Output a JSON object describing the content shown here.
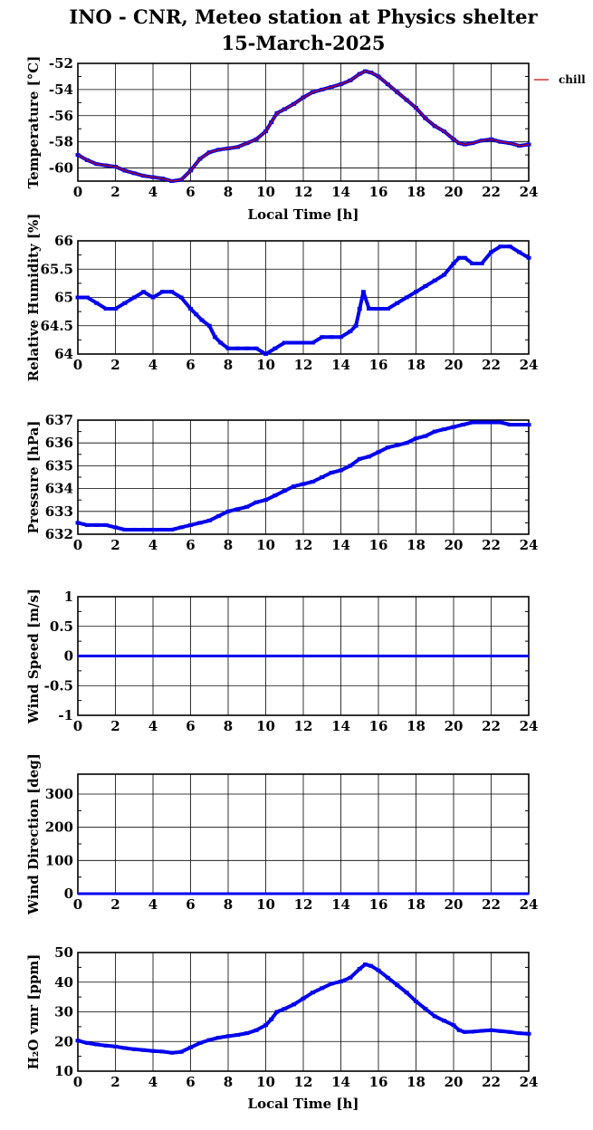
{
  "title_line1": "INO - CNR, Meteo station at Physics shelter",
  "title_line2": "15-March-2025",
  "colors": {
    "data": "#0000ee",
    "chill": "#cc0000",
    "axis": "#000000"
  },
  "chart_data": [
    {
      "type": "scatter",
      "ylabel": "Temperature [°C]",
      "xlabel": "Local Time [h]",
      "xlim": [
        0,
        24
      ],
      "ylim": [
        -61,
        -52
      ],
      "xticks": [
        0,
        2,
        4,
        6,
        8,
        10,
        12,
        14,
        16,
        18,
        20,
        22,
        24
      ],
      "yticks": [
        -60,
        -58,
        -56,
        -54,
        -52
      ],
      "legend": {
        "label": "chill",
        "placement": "outside-right"
      },
      "series": [
        {
          "name": "",
          "color": "#0000ee",
          "x": [
            0,
            0.5,
            1,
            1.5,
            2,
            2.5,
            3,
            3.5,
            4,
            4.5,
            5,
            5.5,
            6,
            6.5,
            7,
            7.5,
            8,
            8.5,
            9,
            9.5,
            10,
            10.3,
            10.6,
            11,
            11.5,
            12,
            12.5,
            13,
            13.5,
            14,
            14.5,
            15,
            15.3,
            15.6,
            16,
            16.5,
            17,
            17.5,
            18,
            18.5,
            19,
            19.5,
            20,
            20.3,
            20.6,
            21,
            21.5,
            22,
            22.5,
            23,
            23.5,
            24
          ],
          "y": [
            -59.0,
            -59.4,
            -59.7,
            -59.8,
            -59.9,
            -60.2,
            -60.4,
            -60.6,
            -60.7,
            -60.8,
            -61.0,
            -60.9,
            -60.2,
            -59.3,
            -58.8,
            -58.6,
            -58.5,
            -58.4,
            -58.1,
            -57.8,
            -57.2,
            -56.5,
            -55.8,
            -55.5,
            -55.1,
            -54.6,
            -54.2,
            -54.0,
            -53.8,
            -53.6,
            -53.3,
            -52.8,
            -52.6,
            -52.7,
            -53.0,
            -53.6,
            -54.2,
            -54.8,
            -55.4,
            -56.2,
            -56.8,
            -57.2,
            -57.8,
            -58.1,
            -58.2,
            -58.1,
            -57.9,
            -57.8,
            -58.0,
            -58.1,
            -58.3,
            -58.2
          ]
        },
        {
          "name": "chill",
          "color": "#cc0000",
          "x": [
            0,
            0.5,
            1,
            1.5,
            2,
            2.5,
            3,
            3.5,
            4,
            4.5,
            5,
            5.5,
            6,
            6.5,
            7,
            7.5,
            8,
            8.5,
            9,
            9.5,
            10,
            10.3,
            10.6,
            11,
            11.5,
            12,
            12.5,
            13,
            13.5,
            14,
            14.5,
            15,
            15.3,
            15.6,
            16,
            16.5,
            17,
            17.5,
            18,
            18.5,
            19,
            19.5,
            20,
            20.3,
            20.6,
            21,
            21.5,
            22,
            22.5,
            23,
            23.5,
            24
          ],
          "y": [
            -59.0,
            -59.4,
            -59.7,
            -59.8,
            -59.9,
            -60.2,
            -60.4,
            -60.6,
            -60.7,
            -60.8,
            -61.0,
            -60.9,
            -60.2,
            -59.3,
            -58.8,
            -58.6,
            -58.5,
            -58.4,
            -58.1,
            -57.8,
            -57.2,
            -56.5,
            -55.8,
            -55.5,
            -55.1,
            -54.6,
            -54.2,
            -54.0,
            -53.8,
            -53.6,
            -53.3,
            -52.8,
            -52.6,
            -52.7,
            -53.0,
            -53.6,
            -54.2,
            -54.8,
            -55.4,
            -56.2,
            -56.8,
            -57.2,
            -57.8,
            -58.1,
            -58.2,
            -58.1,
            -57.9,
            -57.8,
            -58.0,
            -58.1,
            -58.3,
            -58.2
          ]
        }
      ]
    },
    {
      "type": "scatter",
      "ylabel": "Relative Humidity [%]",
      "xlabel": "",
      "xlim": [
        0,
        24
      ],
      "ylim": [
        64,
        66
      ],
      "xticks": [
        0,
        2,
        4,
        6,
        8,
        10,
        12,
        14,
        16,
        18,
        20,
        22,
        24
      ],
      "yticks": [
        64,
        64.5,
        65,
        65.5,
        66
      ],
      "series": [
        {
          "name": "",
          "color": "#0000ee",
          "x": [
            0,
            0.5,
            1,
            1.5,
            2,
            2.5,
            3,
            3.5,
            4,
            4.5,
            5,
            5.5,
            6,
            6.3,
            6.6,
            7,
            7.3,
            7.6,
            8,
            8.5,
            9,
            9.5,
            10,
            10.5,
            11,
            11.5,
            12,
            12.5,
            13,
            13.5,
            14,
            14.5,
            14.8,
            15,
            15.2,
            15.5,
            16,
            16.5,
            17,
            17.5,
            18,
            18.5,
            19,
            19.5,
            20,
            20.3,
            20.6,
            21,
            21.5,
            22,
            22.5,
            23,
            23.5,
            24
          ],
          "y": [
            65.0,
            65.0,
            64.9,
            64.8,
            64.8,
            64.9,
            65.0,
            65.1,
            65.0,
            65.1,
            65.1,
            65.0,
            64.8,
            64.7,
            64.6,
            64.5,
            64.3,
            64.2,
            64.1,
            64.1,
            64.1,
            64.1,
            64.0,
            64.1,
            64.2,
            64.2,
            64.2,
            64.2,
            64.3,
            64.3,
            64.3,
            64.4,
            64.5,
            64.8,
            65.1,
            64.8,
            64.8,
            64.8,
            64.9,
            65.0,
            65.1,
            65.2,
            65.3,
            65.4,
            65.6,
            65.7,
            65.7,
            65.6,
            65.6,
            65.8,
            65.9,
            65.9,
            65.8,
            65.7
          ]
        }
      ]
    },
    {
      "type": "scatter",
      "ylabel": "Pressure [hPa]",
      "xlabel": "",
      "xlim": [
        0,
        24
      ],
      "ylim": [
        632,
        637
      ],
      "xticks": [
        0,
        2,
        4,
        6,
        8,
        10,
        12,
        14,
        16,
        18,
        20,
        22,
        24
      ],
      "yticks": [
        632,
        633,
        634,
        635,
        636,
        637
      ],
      "series": [
        {
          "name": "",
          "color": "#0000ee",
          "x": [
            0,
            0.5,
            1,
            1.5,
            2,
            2.5,
            3,
            3.5,
            4,
            4.5,
            5,
            5.5,
            6,
            6.5,
            7,
            7.5,
            8,
            8.5,
            9,
            9.5,
            10,
            10.5,
            11,
            11.5,
            12,
            12.5,
            13,
            13.5,
            14,
            14.5,
            15,
            15.5,
            16,
            16.5,
            17,
            17.5,
            18,
            18.5,
            19,
            19.5,
            20,
            20.5,
            21,
            21.5,
            22,
            22.5,
            23,
            23.5,
            24
          ],
          "y": [
            632.5,
            632.4,
            632.4,
            632.4,
            632.3,
            632.2,
            632.2,
            632.2,
            632.2,
            632.2,
            632.2,
            632.3,
            632.4,
            632.5,
            632.6,
            632.8,
            633.0,
            633.1,
            633.2,
            633.4,
            633.5,
            633.7,
            633.9,
            634.1,
            634.2,
            634.3,
            634.5,
            634.7,
            634.8,
            635.0,
            635.3,
            635.4,
            635.6,
            635.8,
            635.9,
            636.0,
            636.2,
            636.3,
            636.5,
            636.6,
            636.7,
            636.8,
            636.9,
            636.9,
            636.9,
            636.9,
            636.8,
            636.8,
            636.8
          ]
        }
      ]
    },
    {
      "type": "scatter",
      "ylabel": "Wind Speed [m/s]",
      "xlabel": "",
      "xlim": [
        0,
        24
      ],
      "ylim": [
        -1,
        1
      ],
      "xticks": [
        0,
        2,
        4,
        6,
        8,
        10,
        12,
        14,
        16,
        18,
        20,
        22,
        24
      ],
      "yticks": [
        -1,
        -0.5,
        0,
        0.5,
        1
      ],
      "series": [
        {
          "name": "",
          "color": "#0000ee",
          "x": [
            0,
            24
          ],
          "y": [
            0,
            0
          ]
        }
      ]
    },
    {
      "type": "scatter",
      "ylabel": "Wind Direction [deg]",
      "xlabel": "",
      "xlim": [
        0,
        24
      ],
      "ylim": [
        0,
        360
      ],
      "xticks": [
        0,
        2,
        4,
        6,
        8,
        10,
        12,
        14,
        16,
        18,
        20,
        22,
        24
      ],
      "yticks": [
        0,
        100,
        200,
        300
      ],
      "series": [
        {
          "name": "",
          "color": "#0000ee",
          "x": [
            0,
            24
          ],
          "y": [
            0,
            0
          ]
        }
      ]
    },
    {
      "type": "scatter",
      "ylabel": "H₂O vmr [ppm]",
      "xlabel": "Local Time [h]",
      "xlim": [
        0,
        24
      ],
      "ylim": [
        10,
        50
      ],
      "xticks": [
        0,
        2,
        4,
        6,
        8,
        10,
        12,
        14,
        16,
        18,
        20,
        22,
        24
      ],
      "yticks": [
        10,
        20,
        30,
        40,
        50
      ],
      "series": [
        {
          "name": "",
          "color": "#0000ee",
          "x": [
            0,
            0.5,
            1,
            1.5,
            2,
            2.5,
            3,
            3.5,
            4,
            4.5,
            5,
            5.5,
            6,
            6.5,
            7,
            7.5,
            8,
            8.5,
            9,
            9.5,
            10,
            10.3,
            10.6,
            11,
            11.5,
            12,
            12.5,
            13,
            13.5,
            14,
            14.5,
            15,
            15.3,
            15.6,
            16,
            16.5,
            17,
            17.5,
            18,
            18.5,
            19,
            19.5,
            20,
            20.3,
            20.6,
            21,
            21.5,
            22,
            22.5,
            23,
            23.5,
            24
          ],
          "y": [
            20.3,
            19.5,
            19.0,
            18.6,
            18.3,
            17.8,
            17.4,
            17.1,
            16.8,
            16.6,
            16.2,
            16.5,
            18.0,
            19.5,
            20.5,
            21.3,
            21.8,
            22.2,
            22.8,
            23.8,
            25.5,
            27.5,
            30.0,
            31.0,
            32.5,
            34.5,
            36.5,
            38.0,
            39.5,
            40.2,
            41.5,
            44.5,
            46.0,
            45.5,
            44.0,
            41.5,
            39.0,
            36.5,
            33.5,
            31.0,
            28.5,
            27.0,
            25.5,
            23.8,
            23.2,
            23.3,
            23.6,
            23.8,
            23.5,
            23.2,
            22.8,
            22.6
          ]
        }
      ]
    }
  ]
}
